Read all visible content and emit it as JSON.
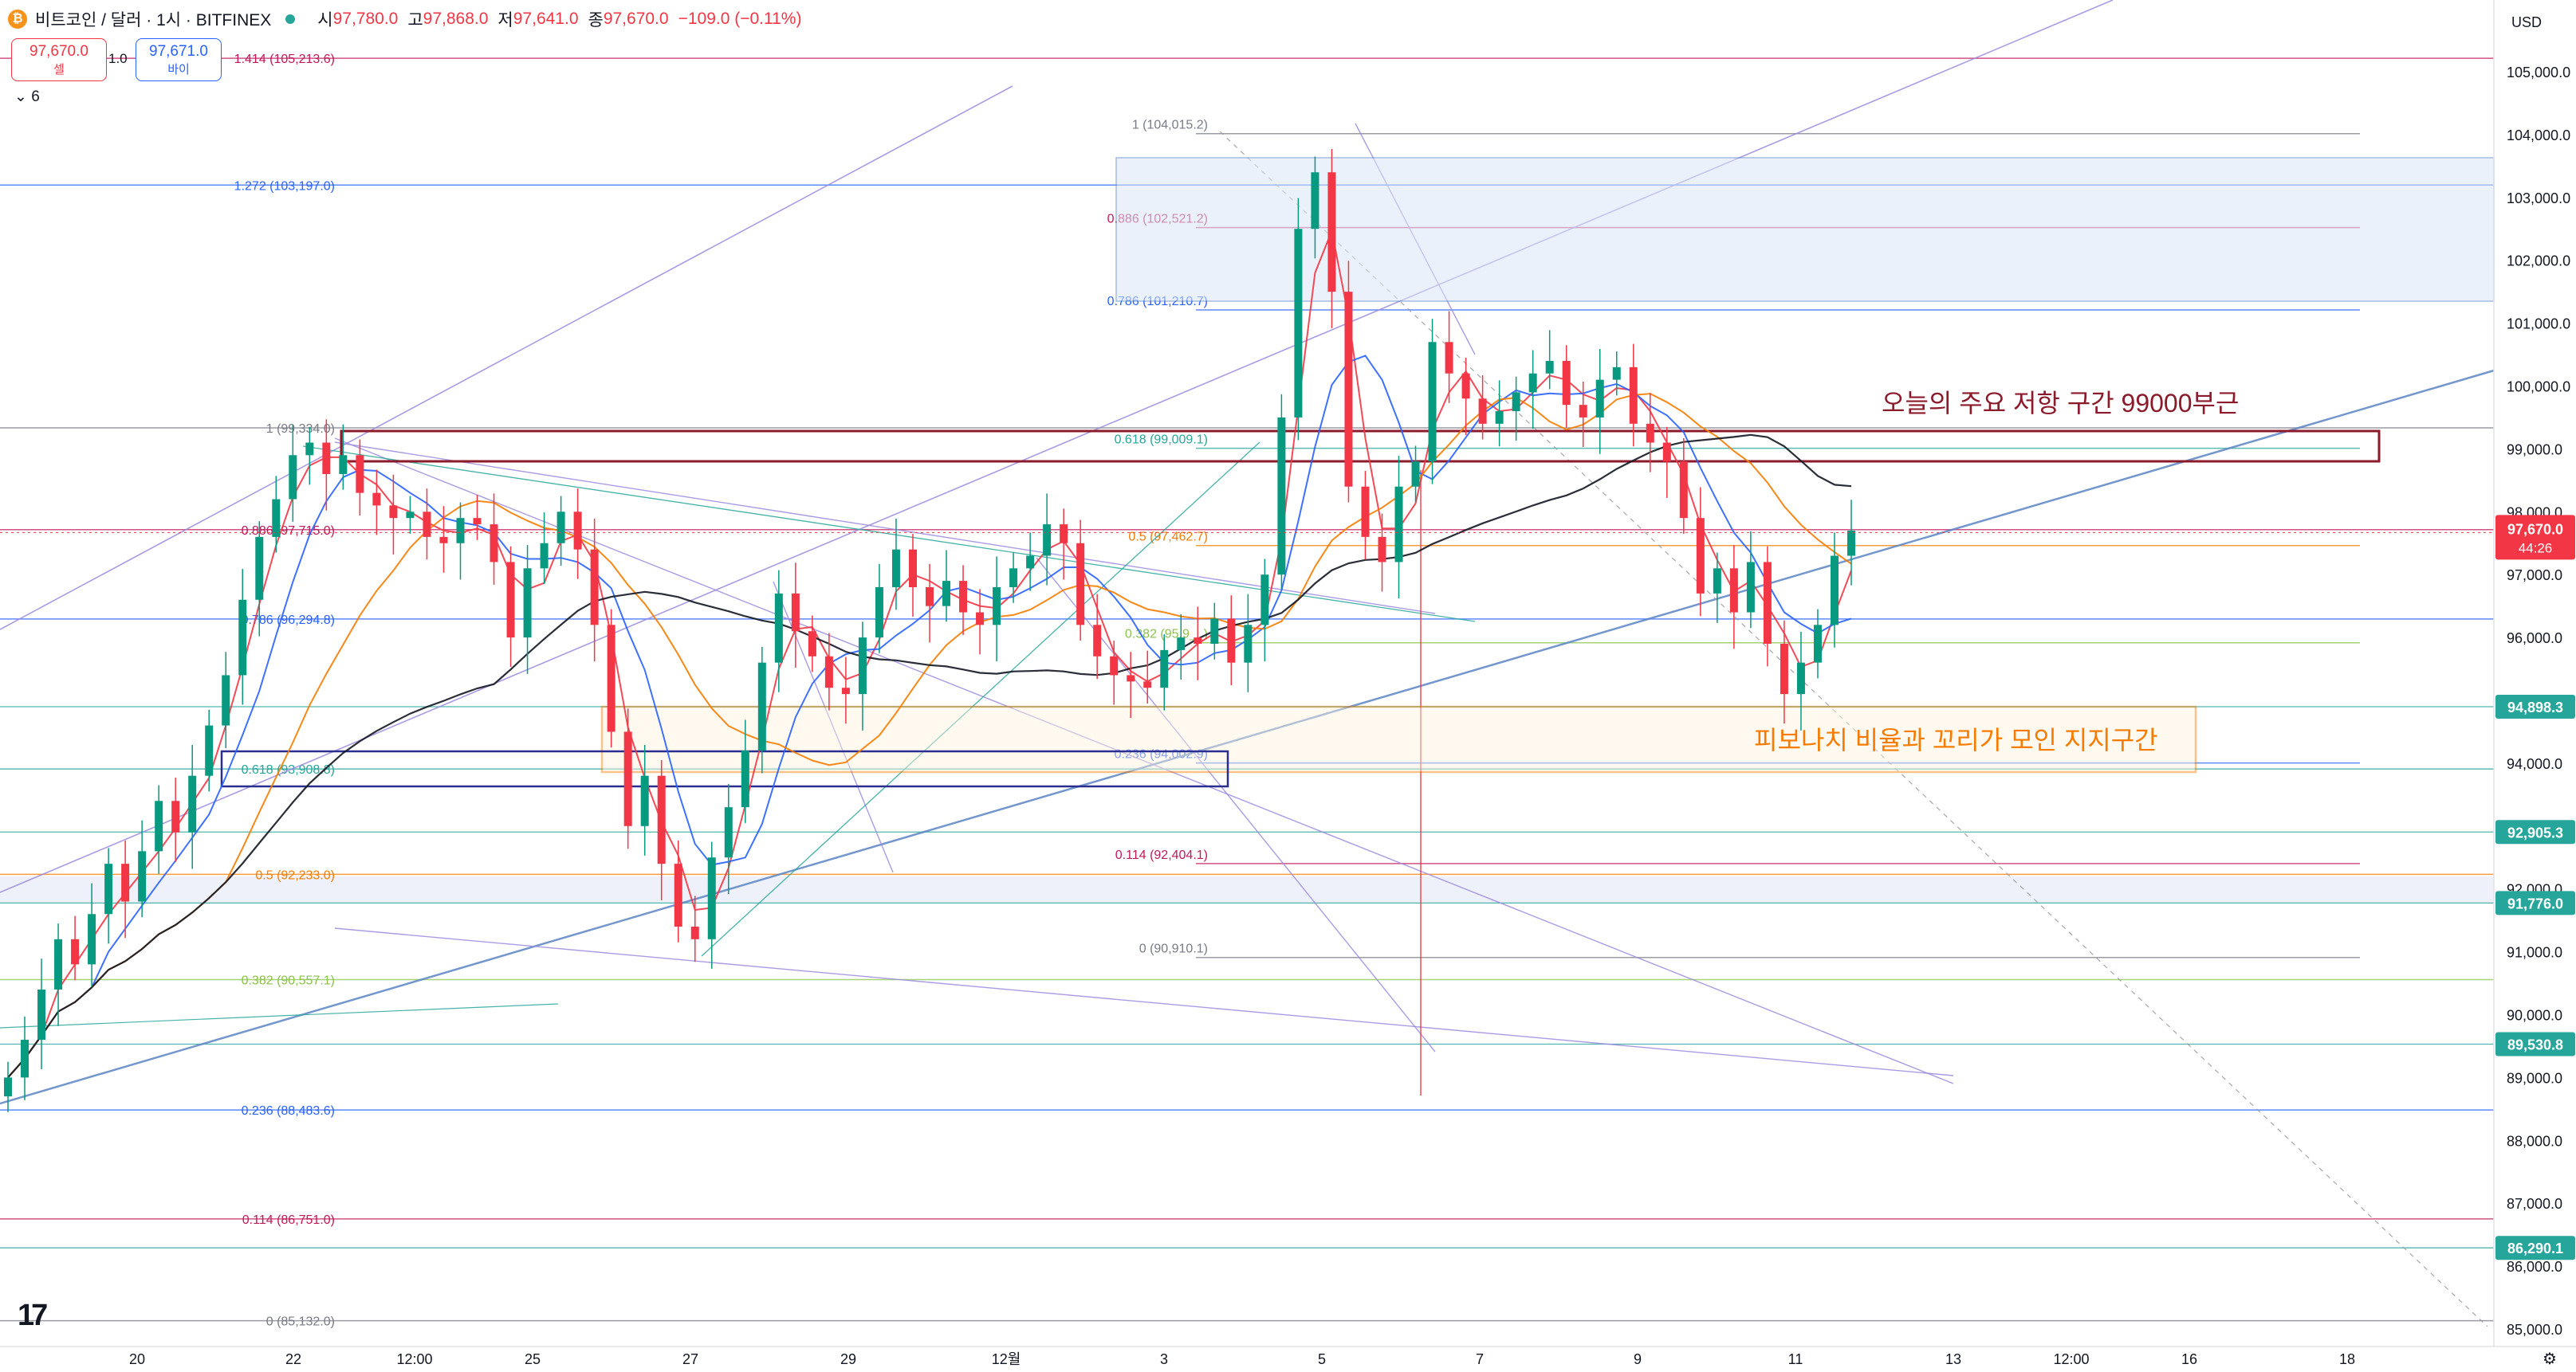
{
  "header": {
    "symbol": "비트코인 / 달러 · 1시 · BITFINEX",
    "coin_glyph": "₿",
    "open_label": "시",
    "open": "97,780.0",
    "high_label": "고",
    "high": "97,868.0",
    "low_label": "저",
    "low": "97,641.0",
    "close_label": "종",
    "close": "97,670.0",
    "change": "−109.0 (−0.11%)"
  },
  "trade": {
    "sell_price": "97,670.0",
    "sell_label": "셀",
    "spread": "1.0",
    "buy_price": "97,671.0",
    "buy_label": "바이"
  },
  "indicators_toggle": "⌄ 6",
  "price_axis": {
    "currency": "USD",
    "ticks": [
      "105,000.0",
      "104,000.0",
      "103,000.0",
      "102,000.0",
      "101,000.0",
      "100,000.0",
      "99,000.0",
      "98,000.0",
      "97,000.0",
      "96,000.0",
      "95,000.0",
      "94,000.0",
      "93,000.0",
      "92,000.0",
      "91,000.0",
      "90,000.0",
      "89,000.0",
      "88,000.0",
      "87,000.0",
      "86,000.0",
      "85,000.0"
    ],
    "current_price": "97,670.0",
    "countdown": "44:26"
  },
  "colors": {
    "up": "#089981",
    "down": "#f23645",
    "blue_line": "#5b86c5",
    "purple": "#9c8ae0",
    "orange": "#f57c00",
    "dark_red": "#8b1a2b",
    "navy": "#2a2e8f",
    "fib_red": "#c2185b",
    "fib_teal": "#26a69a"
  },
  "time_axis": [
    "20",
    "22",
    "12:00",
    "25",
    "27",
    "29",
    "12월",
    "3",
    "5",
    "7",
    "9",
    "11",
    "13",
    "12:00",
    "16",
    "18"
  ],
  "annotations": {
    "resistance": "오늘의 주요 저항 구간 99000부근",
    "support": "피보나치 비율과 꼬리가 모인 지지구간"
  },
  "chart_data": {
    "type": "candlestick",
    "title": "비트코인 / 달러 · 1시 · BITFINEX",
    "ylim": [
      85000,
      105800
    ],
    "y_unit": "USD",
    "x_range": [
      "2024-11-19",
      "2024-12-18"
    ],
    "fib_left": [
      {
        "label": "1.414 (105,213.6)",
        "value": 105213.6,
        "color": "#c2185b"
      },
      {
        "label": "1.272 (103,197.0)",
        "value": 103197.0,
        "color": "#2962ff"
      },
      {
        "label": "1 (99,334.0)",
        "value": 99334.0,
        "color": "#787b86"
      },
      {
        "label": "0.886 (97,715.0)",
        "value": 97715.0,
        "color": "#c2185b"
      },
      {
        "label": "0.786 (96,294.8)",
        "value": 96294.8,
        "color": "#2962ff"
      },
      {
        "label": "0.618 (93,908.8)",
        "value": 93908.8,
        "color": "#26a69a"
      },
      {
        "label": "0.5 (92,233.0)",
        "value": 92233.0,
        "color": "#f57c00"
      },
      {
        "label": "0.382 (90,557.1)",
        "value": 90557.1,
        "color": "#8bc34a"
      },
      {
        "label": "0.236 (88,483.6)",
        "value": 88483.6,
        "color": "#2962ff"
      },
      {
        "label": "0.114 (86,751.0)",
        "value": 86751.0,
        "color": "#c2185b"
      },
      {
        "label": "0 (85,132.0)",
        "value": 85132.0,
        "color": "#787b86"
      }
    ],
    "fib_right": [
      {
        "label": "1 (104,015.2)",
        "value": 104015.2,
        "color": "#787b86"
      },
      {
        "label": "0.886 (102,521.2)",
        "value": 102521.2,
        "color": "#c2185b"
      },
      {
        "label": "0.786 (101,210.7)",
        "value": 101210.7,
        "color": "#2962ff"
      },
      {
        "label": "0.618 (99,009.1)",
        "value": 99009.1,
        "color": "#26a69a"
      },
      {
        "label": "0.5 (97,462.7)",
        "value": 97462.7,
        "color": "#f57c00"
      },
      {
        "label": "0.382 (95,9__)",
        "value": 95916.3,
        "color": "#8bc34a"
      },
      {
        "label": "0.236 (94,002.9)",
        "value": 94002.9,
        "color": "#2962ff"
      },
      {
        "label": "0.114 (92,404.1)",
        "value": 92404.1,
        "color": "#c2185b"
      },
      {
        "label": "0 (90,910.1)",
        "value": 90910.1,
        "color": "#787b86"
      }
    ],
    "price_labels": [
      {
        "label": "94,898.3",
        "value": 94898.3
      },
      {
        "label": "92,905.3",
        "value": 92905.3
      },
      {
        "label": "91,776.0",
        "value": 91776.0
      },
      {
        "label": "89,530.8",
        "value": 89530.8
      },
      {
        "label": "86,290.1",
        "value": 86290.1
      }
    ],
    "candle_closes": [
      89000,
      89600,
      90400,
      91200,
      90800,
      91600,
      92400,
      91800,
      92600,
      93400,
      92900,
      93800,
      94600,
      95400,
      96600,
      97600,
      98200,
      98900,
      99100,
      98600,
      98900,
      98300,
      98100,
      97900,
      98000,
      97600,
      97500,
      97900,
      97800,
      97200,
      96000,
      97100,
      97500,
      98000,
      97400,
      96200,
      94500,
      93000,
      93800,
      92400,
      91400,
      91200,
      92500,
      93300,
      94200,
      95600,
      96700,
      96100,
      95700,
      95200,
      95100,
      96000,
      96800,
      97400,
      96800,
      96500,
      96900,
      96400,
      96200,
      96800,
      97100,
      97300,
      97800,
      97500,
      96200,
      95700,
      95400,
      95300,
      95200,
      95800,
      96000,
      95900,
      96300,
      95600,
      96200,
      97000,
      99500,
      102500,
      103400,
      101500,
      98400,
      97600,
      97200,
      98400,
      98800,
      100700,
      100200,
      99800,
      99400,
      99600,
      99900,
      100200,
      100400,
      99700,
      99500,
      100100,
      100300,
      99400,
      99100,
      98800,
      97900,
      96700,
      97100,
      96400,
      97200,
      95900,
      95100,
      95600,
      96200,
      97300,
      97700
    ]
  }
}
